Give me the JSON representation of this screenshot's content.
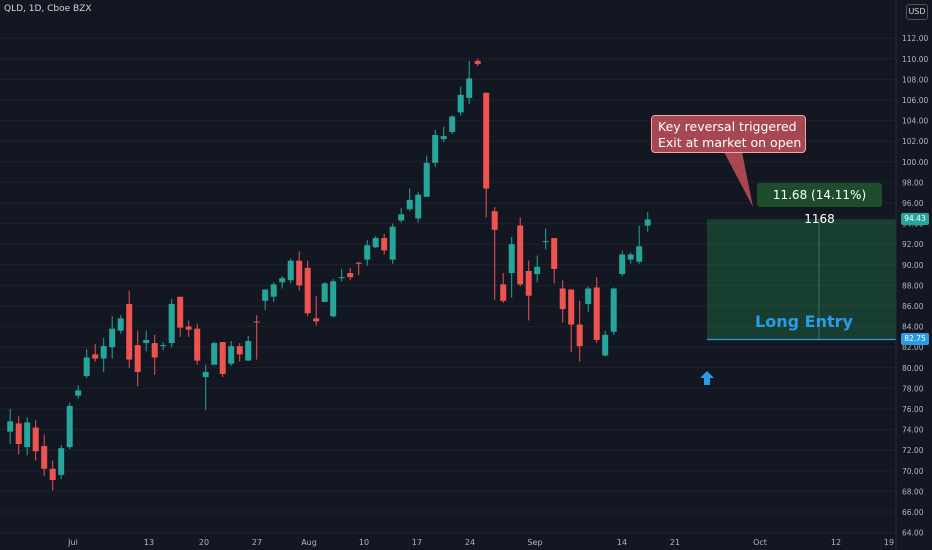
{
  "header": {
    "title": "QLD, 1D, Cboe BZX",
    "currency": "USD"
  },
  "annotations": {
    "callout_line1": "Key reversal triggered",
    "callout_line2": "Exit at market on open",
    "profit_label": "11.68 (14.11%) 1168",
    "long_entry_label": "Long Entry",
    "current_price": "94.43",
    "entry_price": "82.75"
  },
  "colors": {
    "background": "#131722",
    "up": "#26a69a",
    "down": "#ef5350",
    "grid": "#1e222d",
    "text": "#b2b5be",
    "entry_line": "#2b9be6",
    "profit_zone": "#1e4d2b"
  },
  "chart_data": {
    "type": "candlestick",
    "title": "QLD, 1D, Cboe BZX",
    "ylim": [
      64,
      113
    ],
    "y_ticks": [
      64,
      66,
      68,
      70,
      72,
      74,
      76,
      78,
      80,
      82,
      84,
      86,
      88,
      90,
      92,
      94,
      96,
      98,
      100,
      102,
      104,
      106,
      108,
      110,
      112
    ],
    "x_ticks": [
      "Jul",
      "13",
      "20",
      "27",
      "Aug",
      "10",
      "17",
      "24",
      "Sep",
      "14",
      "21",
      "Oct",
      "12",
      "19"
    ],
    "entry_price": 82.75,
    "exit_price": 94.43,
    "profit": {
      "points": 11.68,
      "percent": 14.11,
      "value": 1168
    },
    "candles": [
      {
        "o": 73.8,
        "h": 76.0,
        "l": 72.6,
        "c": 74.8
      },
      {
        "o": 74.6,
        "h": 75.3,
        "l": 71.6,
        "c": 72.6
      },
      {
        "o": 72.3,
        "h": 75.2,
        "l": 71.5,
        "c": 74.7
      },
      {
        "o": 74.2,
        "h": 74.9,
        "l": 71.0,
        "c": 71.9
      },
      {
        "o": 72.4,
        "h": 73.5,
        "l": 69.5,
        "c": 70.2
      },
      {
        "o": 70.2,
        "h": 71.0,
        "l": 68.1,
        "c": 69.1
      },
      {
        "o": 69.6,
        "h": 72.5,
        "l": 69.2,
        "c": 72.2
      },
      {
        "o": 72.3,
        "h": 76.6,
        "l": 72.1,
        "c": 76.3
      },
      {
        "o": 77.3,
        "h": 78.3,
        "l": 77.0,
        "c": 77.8
      },
      {
        "o": 79.2,
        "h": 81.8,
        "l": 79.0,
        "c": 81.0
      },
      {
        "o": 81.3,
        "h": 82.3,
        "l": 80.6,
        "c": 80.9
      },
      {
        "o": 80.9,
        "h": 82.9,
        "l": 79.6,
        "c": 82.1
      },
      {
        "o": 82.0,
        "h": 85.0,
        "l": 80.9,
        "c": 83.8
      },
      {
        "o": 83.6,
        "h": 85.1,
        "l": 83.3,
        "c": 84.8
      },
      {
        "o": 86.2,
        "h": 87.5,
        "l": 80.0,
        "c": 80.8
      },
      {
        "o": 82.2,
        "h": 83.6,
        "l": 78.2,
        "c": 79.6
      },
      {
        "o": 82.4,
        "h": 83.6,
        "l": 81.6,
        "c": 82.7
      },
      {
        "o": 82.4,
        "h": 83.2,
        "l": 79.3,
        "c": 81.0
      },
      {
        "o": 82.1,
        "h": 82.5,
        "l": 81.7,
        "c": 82.2
      },
      {
        "o": 82.4,
        "h": 86.7,
        "l": 82.0,
        "c": 86.2
      },
      {
        "o": 86.9,
        "h": 86.9,
        "l": 83.0,
        "c": 83.9
      },
      {
        "o": 84.0,
        "h": 84.6,
        "l": 83.0,
        "c": 83.7
      },
      {
        "o": 83.8,
        "h": 84.3,
        "l": 80.3,
        "c": 80.7
      },
      {
        "o": 79.1,
        "h": 80.3,
        "l": 75.9,
        "c": 79.6
      },
      {
        "o": 80.3,
        "h": 82.5,
        "l": 80.3,
        "c": 82.4
      },
      {
        "o": 82.5,
        "h": 82.5,
        "l": 79.1,
        "c": 79.4
      },
      {
        "o": 80.4,
        "h": 82.6,
        "l": 80.2,
        "c": 82.1
      },
      {
        "o": 82.1,
        "h": 82.4,
        "l": 80.6,
        "c": 81.3
      },
      {
        "o": 80.7,
        "h": 83.1,
        "l": 80.7,
        "c": 82.6
      },
      {
        "o": 84.5,
        "h": 85.1,
        "l": 80.8,
        "c": 84.4
      },
      {
        "o": 86.5,
        "h": 87.6,
        "l": 85.6,
        "c": 87.6
      },
      {
        "o": 86.9,
        "h": 88.3,
        "l": 86.4,
        "c": 88.1
      },
      {
        "o": 88.3,
        "h": 88.9,
        "l": 87.7,
        "c": 88.7
      },
      {
        "o": 88.5,
        "h": 90.6,
        "l": 88.2,
        "c": 90.4
      },
      {
        "o": 90.4,
        "h": 91.3,
        "l": 87.5,
        "c": 88.0
      },
      {
        "o": 89.7,
        "h": 90.4,
        "l": 85.0,
        "c": 85.3
      },
      {
        "o": 84.8,
        "h": 87.0,
        "l": 84.1,
        "c": 84.5
      },
      {
        "o": 86.4,
        "h": 88.3,
        "l": 86.4,
        "c": 88.2
      },
      {
        "o": 85.0,
        "h": 88.6,
        "l": 84.9,
        "c": 88.4
      },
      {
        "o": 88.8,
        "h": 89.6,
        "l": 88.4,
        "c": 88.8
      },
      {
        "o": 89.2,
        "h": 89.7,
        "l": 88.5,
        "c": 88.8
      },
      {
        "o": 90.2,
        "h": 90.3,
        "l": 89.0,
        "c": 90.1
      },
      {
        "o": 90.5,
        "h": 92.4,
        "l": 89.9,
        "c": 91.9
      },
      {
        "o": 91.7,
        "h": 92.8,
        "l": 91.6,
        "c": 92.6
      },
      {
        "o": 92.6,
        "h": 93.0,
        "l": 91.0,
        "c": 91.4
      },
      {
        "o": 90.5,
        "h": 94.0,
        "l": 90.1,
        "c": 93.7
      },
      {
        "o": 94.3,
        "h": 95.5,
        "l": 94.1,
        "c": 94.9
      },
      {
        "o": 95.4,
        "h": 97.4,
        "l": 95.2,
        "c": 96.3
      },
      {
        "o": 94.5,
        "h": 97.1,
        "l": 94.1,
        "c": 96.8
      },
      {
        "o": 96.6,
        "h": 100.6,
        "l": 96.6,
        "c": 99.9
      },
      {
        "o": 99.9,
        "h": 103.1,
        "l": 99.5,
        "c": 102.6
      },
      {
        "o": 102.2,
        "h": 103.4,
        "l": 101.9,
        "c": 102.5
      },
      {
        "o": 102.9,
        "h": 104.5,
        "l": 102.7,
        "c": 104.4
      },
      {
        "o": 104.8,
        "h": 107.3,
        "l": 104.5,
        "c": 106.5
      },
      {
        "o": 106.2,
        "h": 109.8,
        "l": 105.6,
        "c": 108.1
      },
      {
        "o": 109.8,
        "h": 110.0,
        "l": 109.3,
        "c": 109.5
      },
      {
        "o": 106.7,
        "h": 106.7,
        "l": 94.6,
        "c": 97.4
      },
      {
        "o": 95.2,
        "h": 95.6,
        "l": 86.6,
        "c": 93.4
      },
      {
        "o": 88.1,
        "h": 89.2,
        "l": 86.3,
        "c": 86.5
      },
      {
        "o": 89.2,
        "h": 92.7,
        "l": 86.8,
        "c": 92.0
      },
      {
        "o": 93.8,
        "h": 94.6,
        "l": 87.9,
        "c": 88.1
      },
      {
        "o": 89.4,
        "h": 90.4,
        "l": 84.6,
        "c": 87.0
      },
      {
        "o": 89.1,
        "h": 90.9,
        "l": 88.3,
        "c": 89.8
      },
      {
        "o": 92.2,
        "h": 93.5,
        "l": 91.5,
        "c": 92.3
      },
      {
        "o": 92.6,
        "h": 92.6,
        "l": 88.2,
        "c": 89.6
      },
      {
        "o": 87.7,
        "h": 88.5,
        "l": 84.4,
        "c": 85.7
      },
      {
        "o": 87.6,
        "h": 87.6,
        "l": 81.5,
        "c": 84.2
      },
      {
        "o": 84.2,
        "h": 86.5,
        "l": 80.6,
        "c": 82.1
      },
      {
        "o": 86.2,
        "h": 87.9,
        "l": 85.4,
        "c": 87.7
      },
      {
        "o": 87.8,
        "h": 88.8,
        "l": 82.4,
        "c": 82.7
      },
      {
        "o": 81.2,
        "h": 83.6,
        "l": 81.1,
        "c": 83.2
      },
      {
        "o": 83.5,
        "h": 87.8,
        "l": 83.2,
        "c": 87.7
      },
      {
        "o": 89.1,
        "h": 91.4,
        "l": 88.9,
        "c": 91.0
      },
      {
        "o": 90.5,
        "h": 91.2,
        "l": 90.1,
        "c": 91.0
      },
      {
        "o": 90.3,
        "h": 93.8,
        "l": 90.1,
        "c": 91.8
      },
      {
        "o": 93.8,
        "h": 95.1,
        "l": 93.2,
        "c": 94.4
      }
    ]
  }
}
